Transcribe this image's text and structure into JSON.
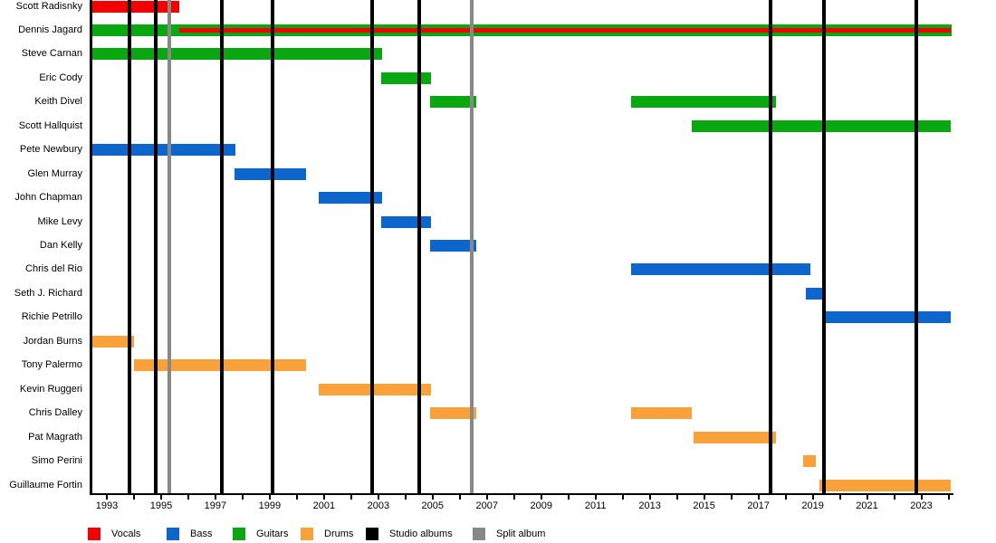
{
  "chart_data": {
    "type": "timeline",
    "description": "Band members timeline (Gantt-style) with instrument tenures and album release markers",
    "x_axis": {
      "min": 1992.4,
      "max": 2024.15,
      "tick_years_start": 1993,
      "tick_years_end": 2024,
      "label_years": [
        1993,
        1995,
        1997,
        1999,
        2001,
        2003,
        2005,
        2007,
        2009,
        2011,
        2013,
        2015,
        2017,
        2019,
        2021,
        2023
      ]
    },
    "colors": {
      "vocals": "#f40000",
      "bass": "#0c66cc",
      "guitars": "#09a810",
      "drums": "#f9a13b",
      "studio_album": "#000000",
      "split_album": "#888888"
    },
    "members": [
      {
        "name": "Scott Radisnky",
        "segments": [
          {
            "role": "vocals",
            "start": 1992.4,
            "end": 1995.66
          }
        ]
      },
      {
        "name": "Dennis Jagard",
        "segments": [
          {
            "role": "guitars",
            "start": 1992.4,
            "end": 2024.1
          },
          {
            "role": "vocals",
            "start": 1995.66,
            "end": 2024.1,
            "overlay": true
          }
        ]
      },
      {
        "name": "Steve Carnan",
        "segments": [
          {
            "role": "guitars",
            "start": 1992.4,
            "end": 2003.15
          }
        ]
      },
      {
        "name": "Eric Cody",
        "segments": [
          {
            "role": "guitars",
            "start": 2003.1,
            "end": 2004.95
          }
        ]
      },
      {
        "name": "Keith Divel",
        "segments": [
          {
            "role": "guitars",
            "start": 2004.9,
            "end": 2006.6
          },
          {
            "role": "guitars",
            "start": 2012.3,
            "end": 2017.65
          }
        ]
      },
      {
        "name": "Scott Hallquist",
        "segments": [
          {
            "role": "guitars",
            "start": 2014.55,
            "end": 2024.1
          }
        ]
      },
      {
        "name": "Pete Newbury",
        "segments": [
          {
            "role": "bass",
            "start": 1992.4,
            "end": 1997.75
          }
        ]
      },
      {
        "name": "Glen Murray",
        "segments": [
          {
            "role": "bass",
            "start": 1997.7,
            "end": 2000.35
          }
        ]
      },
      {
        "name": "John Chapman",
        "segments": [
          {
            "role": "bass",
            "start": 2000.8,
            "end": 2003.15
          }
        ]
      },
      {
        "name": "Mike Levy",
        "segments": [
          {
            "role": "bass",
            "start": 2003.1,
            "end": 2004.95
          }
        ]
      },
      {
        "name": "Dan Kelly",
        "segments": [
          {
            "role": "bass",
            "start": 2004.9,
            "end": 2006.6
          }
        ]
      },
      {
        "name": "Chris del Rio",
        "segments": [
          {
            "role": "bass",
            "start": 2012.3,
            "end": 2018.9
          }
        ]
      },
      {
        "name": "Seth J. Richard",
        "segments": [
          {
            "role": "bass",
            "start": 2018.75,
            "end": 2019.4
          }
        ]
      },
      {
        "name": "Richie Petrillo",
        "segments": [
          {
            "role": "bass",
            "start": 2019.4,
            "end": 2024.1
          }
        ]
      },
      {
        "name": "Jordan Burns",
        "segments": [
          {
            "role": "drums",
            "start": 1992.4,
            "end": 1994.0
          }
        ]
      },
      {
        "name": "Tony Palermo",
        "segments": [
          {
            "role": "drums",
            "start": 1994.0,
            "end": 2000.35
          }
        ]
      },
      {
        "name": "Kevin Ruggeri",
        "segments": [
          {
            "role": "drums",
            "start": 2000.8,
            "end": 2004.95
          }
        ]
      },
      {
        "name": "Chris Dalley",
        "segments": [
          {
            "role": "drums",
            "start": 2004.9,
            "end": 2006.6
          },
          {
            "role": "drums",
            "start": 2012.3,
            "end": 2014.55
          }
        ]
      },
      {
        "name": "Pat Magrath",
        "segments": [
          {
            "role": "drums",
            "start": 2014.6,
            "end": 2017.65
          }
        ]
      },
      {
        "name": "Simo Perini",
        "segments": [
          {
            "role": "drums",
            "start": 2018.65,
            "end": 2019.1
          }
        ]
      },
      {
        "name": "Guillaume Fortin",
        "segments": [
          {
            "role": "drums",
            "start": 2019.25,
            "end": 2024.1
          }
        ]
      }
    ],
    "studio_albums": [
      1993.83,
      1994.8,
      1997.23,
      1999.1,
      2002.77,
      2004.5,
      2017.45,
      2019.42,
      2022.83
    ],
    "split_albums": [
      1995.3,
      2006.45
    ],
    "legend": [
      {
        "label": "Vocals",
        "role": "vocals"
      },
      {
        "label": "Bass",
        "role": "bass"
      },
      {
        "label": "Guitars",
        "role": "guitars"
      },
      {
        "label": "Drums",
        "role": "drums"
      },
      {
        "label": "Studio albums",
        "role": "studio_album"
      },
      {
        "label": "Split album",
        "role": "split_album"
      }
    ],
    "legend_position": "bottom"
  }
}
